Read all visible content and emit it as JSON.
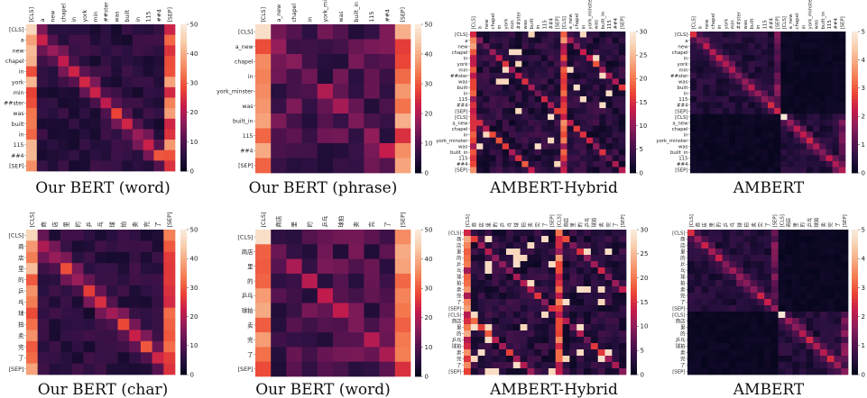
{
  "colors": {
    "colormap": [
      "#03051a",
      "#2a1041",
      "#58134f",
      "#8e1d5b",
      "#c51b4c",
      "#ea4235",
      "#f4774d",
      "#f6a47d",
      "#f8cfae",
      "#faebdd"
    ]
  },
  "chart_data": [
    {
      "type": "heatmap",
      "title": "Our BERT (word)",
      "rows": [
        "[CLS]",
        "a",
        "new",
        "chapel",
        "in",
        "york",
        "min",
        "##ster",
        "was",
        "built",
        "in",
        "115",
        "##4",
        "[SEP]"
      ],
      "cols": [
        "[CLS]",
        "a",
        "new",
        "chapel",
        "in",
        "york",
        "min",
        "##ster",
        "was",
        "built",
        "in",
        "115",
        "##4",
        "[SEP]"
      ],
      "value_range": [
        0,
        50
      ],
      "colorbar_ticks": [
        0,
        10,
        20,
        30,
        40,
        50
      ],
      "pattern": "diagonal"
    },
    {
      "type": "heatmap",
      "title": "Our BERT (phrase)",
      "rows": [
        "[CLS]",
        "a_new",
        "chapel",
        "in",
        "york_minster",
        "was",
        "built_in",
        "115",
        "##4",
        "[SEP]"
      ],
      "cols": [
        "[CLS]",
        "a_new",
        "chapel",
        "in",
        "york_minster",
        "was",
        "built_in",
        "115",
        "##4",
        "[SEP]"
      ],
      "value_range": [
        0,
        50
      ],
      "colorbar_ticks": [
        0,
        10,
        20,
        30,
        40,
        50
      ],
      "pattern": "diffuse"
    },
    {
      "type": "heatmap",
      "title": "AMBERT-Hybrid",
      "rows": [
        "[CLS]",
        "a",
        "new",
        "chapel",
        "in",
        "york",
        "min",
        "##ster",
        "was",
        "built",
        "in",
        "115",
        "##4",
        "[SEP]",
        "[CLS]",
        "a_new",
        "chapel",
        "in",
        "york_minster",
        "was",
        "built_in",
        "115",
        "##4",
        "[SEP]"
      ],
      "cols": [
        "[CLS]",
        "a",
        "new",
        "chapel",
        "in",
        "york",
        "min",
        "##ster",
        "was",
        "built",
        "in",
        "115",
        "##4",
        "[SEP]",
        "[CLS]",
        "a_new",
        "chapel",
        "in",
        "york_minster",
        "was",
        "built_in",
        "115",
        "##4",
        "[SEP]"
      ],
      "value_range": [
        0,
        30
      ],
      "colorbar_ticks": [
        0,
        5,
        10,
        15,
        20,
        25,
        30
      ],
      "pattern": "hybrid"
    },
    {
      "type": "heatmap",
      "title": "AMBERT",
      "rows": [
        "[CLS]",
        "a",
        "new",
        "chapel",
        "in",
        "york",
        "min",
        "##ster",
        "was",
        "built",
        "in",
        "115",
        "##4",
        "[SEP]",
        "[CLS]",
        "a_new",
        "chapel",
        "in",
        "york_minster",
        "was",
        "built_in",
        "115",
        "##4",
        "[SEP]"
      ],
      "cols": [
        "[CLS]",
        "a",
        "new",
        "chapel",
        "in",
        "york",
        "min",
        "##ster",
        "was",
        "built",
        "in",
        "115",
        "##4",
        "[SEP]",
        "[CLS]",
        "a_new",
        "chapel",
        "in",
        "york_minster",
        "was",
        "built_in",
        "115",
        "##4",
        "[SEP]"
      ],
      "value_range": [
        0,
        5
      ],
      "colorbar_ticks": [
        0,
        1,
        2,
        3,
        4,
        5
      ],
      "pattern": "block"
    },
    {
      "type": "heatmap",
      "title": "Our BERT (char)",
      "rows": [
        "[CLS]",
        "商",
        "店",
        "里",
        "的",
        "乒",
        "乓",
        "球",
        "拍",
        "卖",
        "完",
        "了",
        "[SEP]"
      ],
      "cols": [
        "[CLS]",
        "商",
        "店",
        "里",
        "的",
        "乒",
        "乓",
        "球",
        "拍",
        "卖",
        "完",
        "了",
        "[SEP]"
      ],
      "value_range": [
        0,
        50
      ],
      "colorbar_ticks": [
        0,
        10,
        20,
        30,
        40,
        50
      ],
      "pattern": "diagonal"
    },
    {
      "type": "heatmap",
      "title": "Our BERT (word)",
      "rows": [
        "[CLS]",
        "商店",
        "里",
        "的",
        "乒乓",
        "球拍",
        "卖",
        "完",
        "了",
        "[SEP]"
      ],
      "cols": [
        "[CLS]",
        "商店",
        "里",
        "的",
        "乒乓",
        "球拍",
        "卖",
        "完",
        "了",
        "[SEP]"
      ],
      "value_range": [
        0,
        50
      ],
      "colorbar_ticks": [
        0,
        10,
        20,
        30,
        40,
        50
      ],
      "pattern": "diffuse"
    },
    {
      "type": "heatmap",
      "title": "AMBERT-Hybrid",
      "rows": [
        "[CLS]",
        "商",
        "店",
        "里",
        "的",
        "乒",
        "乓",
        "球",
        "拍",
        "卖",
        "完",
        "了",
        "[SEP]",
        "[CLS]",
        "商店",
        "里",
        "的",
        "乒乓",
        "球拍",
        "卖",
        "完",
        "了",
        "[SEP]"
      ],
      "cols": [
        "[CLS]",
        "商",
        "店",
        "里",
        "的",
        "乒",
        "乓",
        "球",
        "拍",
        "卖",
        "完",
        "了",
        "[SEP]",
        "[CLS]",
        "商店",
        "里",
        "的",
        "乒乓",
        "球拍",
        "卖",
        "完",
        "了",
        "[SEP]"
      ],
      "value_range": [
        0,
        30
      ],
      "colorbar_ticks": [
        0,
        5,
        10,
        15,
        20,
        25,
        30
      ],
      "pattern": "hybrid"
    },
    {
      "type": "heatmap",
      "title": "AMBERT",
      "rows": [
        "[CLS]",
        "商",
        "店",
        "里",
        "的",
        "乒",
        "乓",
        "球",
        "拍",
        "卖",
        "完",
        "了",
        "[SEP]",
        "[CLS]",
        "商店",
        "里",
        "的",
        "乒乓",
        "球拍",
        "卖",
        "完",
        "了",
        "[SEP]"
      ],
      "cols": [
        "[CLS]",
        "商",
        "店",
        "里",
        "的",
        "乒",
        "乓",
        "球",
        "拍",
        "卖",
        "完",
        "了",
        "[SEP]",
        "[CLS]",
        "商店",
        "里",
        "的",
        "乒乓",
        "球拍",
        "卖",
        "完",
        "了",
        "[SEP]"
      ],
      "value_range": [
        0,
        5
      ],
      "colorbar_ticks": [
        0,
        1,
        2,
        3,
        4,
        5
      ],
      "pattern": "block"
    }
  ]
}
